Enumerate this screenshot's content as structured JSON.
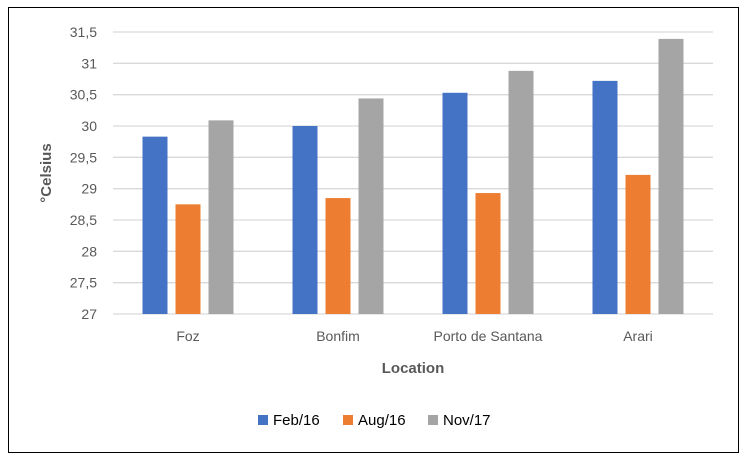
{
  "chart_data": {
    "type": "bar",
    "title": "",
    "xlabel": "Location",
    "ylabel": "°Celsius",
    "categories": [
      "Foz",
      "Bonfim",
      "Porto de Santana",
      "Arari"
    ],
    "series": [
      {
        "name": "Feb/16",
        "color": "#4472C4",
        "values": [
          29.83,
          30.0,
          30.53,
          30.72
        ]
      },
      {
        "name": "Aug/16",
        "color": "#ED7D31",
        "values": [
          28.75,
          28.85,
          28.93,
          29.22
        ]
      },
      {
        "name": "Nov/17",
        "color": "#A5A5A5",
        "values": [
          30.09,
          30.44,
          30.88,
          31.39
        ]
      }
    ],
    "ylim": [
      27,
      31.5
    ],
    "yticks": [
      "27",
      "27,5",
      "28",
      "28,5",
      "29",
      "29,5",
      "30",
      "30,5",
      "31",
      "31,5"
    ],
    "grid": true,
    "legend": "bottom"
  }
}
